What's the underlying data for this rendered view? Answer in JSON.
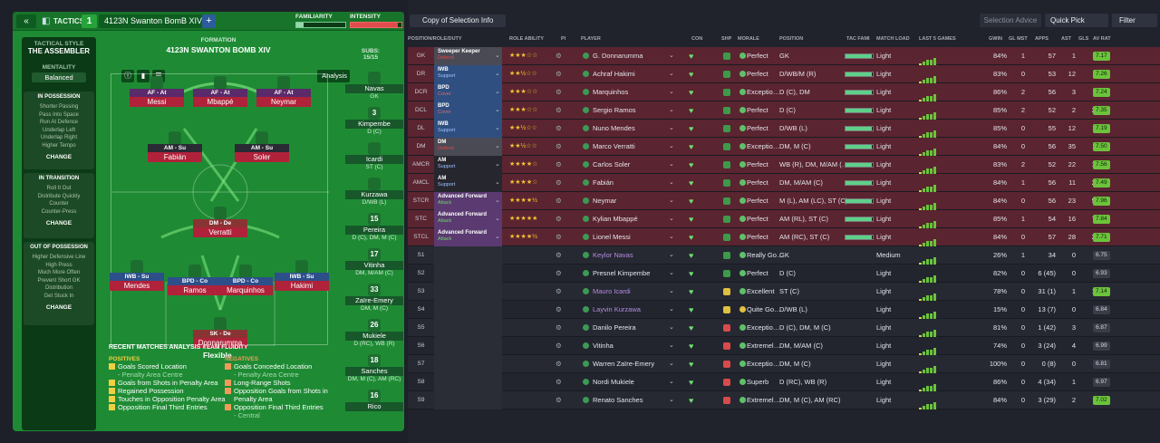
{
  "left": {
    "back_label": "«",
    "tactics_label": "TACTICS",
    "formation_number": "1",
    "formation_name": "4123N Swanton BomB  XIV",
    "plus_label": "+",
    "familiarity_label": "FAMILIARITY",
    "familiarity_value": 0.15,
    "intensity_label": "INTENSITY",
    "intensity_value": 0.92,
    "sidebar": {
      "tactical_style_label": "TACTICAL STYLE",
      "tactical_style_value": "THE ASSEMBLER",
      "mentality_label": "MENTALITY",
      "mentality_value": "Balanced",
      "in_possession": {
        "title": "IN POSSESSION",
        "items": [
          "Shorter Passing",
          "Pass Into Space",
          "Run At Defence",
          "Underlap Left",
          "Underlap Right",
          "Higher Tempo"
        ],
        "change": "CHANGE"
      },
      "in_transition": {
        "title": "IN TRANSITION",
        "items": [
          "Roll It Out",
          "Distribute Quickly",
          "Counter",
          "Counter-Press"
        ],
        "change": "CHANGE"
      },
      "out_of_possession": {
        "title": "OUT OF POSSESSION",
        "items": [
          "Higher Defensive Line",
          "High Press",
          "Much More Often",
          "Prevent Short GK",
          "Distribution",
          "Get Stuck In"
        ],
        "change": "CHANGE"
      }
    },
    "formation_label": "FORMATION",
    "formation_title": "4123N SWANTON BOMB  XIV",
    "analysis_label": "Analysis",
    "pitch_players": [
      {
        "role": "AF - At",
        "name": "Messi"
      },
      {
        "role": "AF - At",
        "name": "Mbappé"
      },
      {
        "role": "AF - At",
        "name": "Neymar"
      },
      {
        "role": "AM - Su",
        "name": "Fabián"
      },
      {
        "role": "AM - Su",
        "name": "Soler"
      },
      {
        "role": "DM - De",
        "name": "Verratti"
      },
      {
        "role": "IWB - Su",
        "name": "Mendes"
      },
      {
        "role": "BPD - Co",
        "name": "Ramos"
      },
      {
        "role": "BPD - Co",
        "name": "Marquinhos"
      },
      {
        "role": "IWB - Su",
        "name": "Hakimi"
      },
      {
        "role": "SK - De",
        "name": "Donnarumma"
      }
    ],
    "team_fluidity_label": "TEAM FLUIDITY",
    "team_fluidity_value": "Flexible",
    "subs_label": "SUBS:",
    "subs_count": "15/15",
    "subs": [
      {
        "num": "",
        "name": "Navas",
        "pos": "GK"
      },
      {
        "num": "3",
        "name": "Kimpembe",
        "pos": "D (C)"
      },
      {
        "num": "",
        "name": "Icardi",
        "pos": "ST (C)"
      },
      {
        "num": "",
        "name": "Kurzawa",
        "pos": "D/WB (L)"
      },
      {
        "num": "15",
        "name": "Pereira",
        "pos": "D (C), DM, M (C)"
      },
      {
        "num": "17",
        "name": "Vitinha",
        "pos": "DM, M/AM (C)"
      },
      {
        "num": "33",
        "name": "Zaïre-Emery",
        "pos": "DM, M (C)"
      },
      {
        "num": "26",
        "name": "Mukiele",
        "pos": "D (RC), WB (R)"
      },
      {
        "num": "18",
        "name": "Sanches",
        "pos": "DM, M (C), AM (RC)"
      },
      {
        "num": "16",
        "name": "Rico",
        "pos": ""
      }
    ],
    "recent": {
      "title": "RECENT MATCHES ANALYSIS ›",
      "positives_label": "POSITIVES",
      "negatives_label": "NEGATIVES",
      "positives": [
        "Goals Scored Location",
        "- Penalty Area Centre",
        "Goals from Shots in Penalty Area",
        "Regained Possession",
        "Touches in Opposition Penalty Area",
        "Opposition Final Third Entries"
      ],
      "negatives": [
        "Goals Conceded Location",
        "- Penalty Area Centre",
        "Long-Range Shots",
        "Opposition Goals from Shots in Penalty Area",
        "Opposition Final Third Entries",
        "- Central"
      ]
    }
  },
  "right": {
    "copy_label": "Copy of Selection Info",
    "selection_advice": "Selection Advice",
    "quick_pick": "Quick Pick",
    "filter": "Filter",
    "headers": [
      "POSITION/ROLE/DUTY",
      "ROLE ABILITY",
      "PI",
      "PLAYER",
      "CON",
      "SHP",
      "MORALE",
      "POSITION",
      "TAC FAMI",
      "MATCH LOAD",
      "LAST 5 GAMES",
      "GWIN",
      "GL MST",
      "APPS",
      "AST",
      "GLS",
      "AV RAT"
    ],
    "rows": [
      {
        "pos": "GK",
        "role": "Sweeper Keeper",
        "duty": "Defend",
        "stars": "★★★☆☆",
        "player": "G. Donnarumma",
        "morale": "Perfect",
        "position": "GK",
        "load": "Light",
        "tf": 0.95,
        "gwin": "84%",
        "glmst": "1",
        "apps": "57",
        "ast": "1",
        "gls": "0",
        "av": "7.17",
        "avc": "#6bc33b",
        "bg": "#5a2430",
        "duty_bg": "#4a4a55",
        "duty_color": "#d94b4b",
        "shp": "#3d9a4a",
        "mor_c": "#5fc06a"
      },
      {
        "pos": "DR",
        "role": "IWB",
        "duty": "Support",
        "stars": "★★½☆☆",
        "player": "Achraf Hakimi",
        "morale": "Perfect",
        "position": "D/WB/M (R)",
        "load": "Light",
        "tf": 0.95,
        "gwin": "83%",
        "glmst": "0",
        "apps": "53",
        "ast": "12",
        "gls": "4",
        "av": "7.26",
        "avc": "#6bc33b",
        "bg": "#5a2430",
        "duty_bg": "#2f4f80",
        "duty_color": "#9cc2ff",
        "shp": "#3d9a4a",
        "mor_c": "#5fc06a"
      },
      {
        "pos": "DCR",
        "role": "BPD",
        "duty": "Cover",
        "stars": "★★★☆☆",
        "player": "Marquinhos",
        "morale": "Exceptio…",
        "position": "D (C), DM",
        "load": "Light",
        "tf": 0.95,
        "gwin": "86%",
        "glmst": "2",
        "apps": "56",
        "ast": "3",
        "gls": "4",
        "av": "7.24",
        "avc": "#6bc33b",
        "bg": "#5a2430",
        "duty_bg": "#2f4f80",
        "duty_color": "#e06a6a",
        "shp": "#3d9a4a",
        "mor_c": "#5fc06a"
      },
      {
        "pos": "DCL",
        "role": "BPD",
        "duty": "Cover",
        "stars": "★★★☆☆",
        "player": "Sergio Ramos",
        "morale": "Perfect",
        "position": "D (C)",
        "load": "Light",
        "tf": 0.95,
        "gwin": "85%",
        "glmst": "2",
        "apps": "52",
        "ast": "2",
        "gls": "24",
        "av": "7.35",
        "avc": "#6bc33b",
        "bg": "#5a2430",
        "duty_bg": "#2f4f80",
        "duty_color": "#e06a6a",
        "shp": "#3d9a4a",
        "mor_c": "#5fc06a"
      },
      {
        "pos": "DL",
        "role": "IWB",
        "duty": "Support",
        "stars": "★★½☆☆",
        "player": "Nuno Mendes",
        "morale": "Perfect",
        "position": "D/WB (L)",
        "load": "Light",
        "tf": 0.95,
        "gwin": "85%",
        "glmst": "0",
        "apps": "55",
        "ast": "12",
        "gls": "1",
        "av": "7.19",
        "avc": "#6bc33b",
        "bg": "#5a2430",
        "duty_bg": "#2f4f80",
        "duty_color": "#9cc2ff",
        "shp": "#3d9a4a",
        "mor_c": "#5fc06a"
      },
      {
        "pos": "DM",
        "role": "DM",
        "duty": "Defend",
        "stars": "★★½☆☆",
        "player": "Marco Verratti",
        "morale": "Exceptio…",
        "position": "DM, M (C)",
        "load": "Light",
        "tf": 0.95,
        "gwin": "84%",
        "glmst": "0",
        "apps": "56",
        "ast": "35",
        "gls": "0",
        "av": "7.50",
        "avc": "#6bc33b",
        "bg": "#5a2430",
        "duty_bg": "#4a4a55",
        "duty_color": "#d94b4b",
        "shp": "#3d9a4a",
        "mor_c": "#5fc06a"
      },
      {
        "pos": "AMCR",
        "role": "AM",
        "duty": "Support",
        "stars": "★★★★☆",
        "player": "Carlos Soler",
        "morale": "Perfect",
        "position": "WB (R), DM, M/AM (…",
        "load": "Light",
        "tf": 0.95,
        "gwin": "83%",
        "glmst": "2",
        "apps": "52",
        "ast": "22",
        "gls": "18",
        "av": "7.56",
        "avc": "#6bc33b",
        "bg": "#5a2430",
        "duty_bg": "#26262e",
        "duty_color": "#9cc2ff",
        "shp": "#3d9a4a",
        "mor_c": "#5fc06a"
      },
      {
        "pos": "AMCL",
        "role": "AM",
        "duty": "Support",
        "stars": "★★★★☆",
        "player": "Fabián",
        "morale": "Perfect",
        "position": "DM, M/AM (C)",
        "load": "Light",
        "tf": 0.95,
        "gwin": "84%",
        "glmst": "1",
        "apps": "56",
        "ast": "11",
        "gls": "20",
        "av": "7.49",
        "avc": "#6bc33b",
        "bg": "#5a2430",
        "duty_bg": "#26262e",
        "duty_color": "#9cc2ff",
        "shp": "#3d9a4a",
        "mor_c": "#5fc06a"
      },
      {
        "pos": "STCR",
        "role": "Advanced Forward",
        "duty": "Attack",
        "stars": "★★★★½",
        "player": "Neymar",
        "morale": "Perfect",
        "position": "M (L), AM (LC), ST (C)",
        "load": "Light",
        "tf": 0.95,
        "gwin": "84%",
        "glmst": "0",
        "apps": "56",
        "ast": "23",
        "gls": "55",
        "av": "7.96",
        "avc": "#6bc33b",
        "bg": "#5a2430",
        "duty_bg": "#5a3a70",
        "duty_color": "#6fd46f",
        "shp": "#3d9a4a",
        "mor_c": "#5fc06a"
      },
      {
        "pos": "STC",
        "role": "Advanced Forward",
        "duty": "Attack",
        "stars": "★★★★★",
        "player": "Kylian Mbappé",
        "morale": "Perfect",
        "position": "AM (RL), ST (C)",
        "load": "Light",
        "tf": 0.95,
        "gwin": "85%",
        "glmst": "1",
        "apps": "54",
        "ast": "16",
        "gls": "71",
        "av": "7.84",
        "avc": "#6bc33b",
        "bg": "#5a2430",
        "duty_bg": "#5a3a70",
        "duty_color": "#6fd46f",
        "shp": "#3d9a4a",
        "mor_c": "#5fc06a"
      },
      {
        "pos": "STCL",
        "role": "Advanced Forward",
        "duty": "Attack",
        "stars": "★★★★½",
        "player": "Lionel Messi",
        "morale": "Perfect",
        "position": "AM (RC), ST (C)",
        "load": "Light",
        "tf": 0.95,
        "gwin": "84%",
        "glmst": "0",
        "apps": "57",
        "ast": "28",
        "gls": "26",
        "av": "7.71",
        "avc": "#6bc33b",
        "bg": "#5a2430",
        "duty_bg": "#5a3a70",
        "duty_color": "#6fd46f",
        "shp": "#3d9a4a",
        "mor_c": "#5fc06a"
      },
      {
        "pos": "S1",
        "role": "",
        "duty": "",
        "stars": "",
        "player": "Keylor Navas",
        "morale": "Really Go…",
        "position": "GK",
        "load": "Medium",
        "tf": 0,
        "gwin": "26%",
        "glmst": "1",
        "apps": "34",
        "ast": "0",
        "gls": "0",
        "av": "6.75",
        "avc": "#3a3d48",
        "bg": "#262932",
        "duty_bg": "#2a2d36",
        "duty_color": "#fff",
        "shp": "#3d9a4a",
        "mor_c": "#5fc06a",
        "pcolor": "#b58be0"
      },
      {
        "pos": "S2",
        "role": "",
        "duty": "",
        "stars": "",
        "player": "Presnel Kimpembe",
        "morale": "Perfect",
        "position": "D (C)",
        "load": "Light",
        "tf": 0,
        "gwin": "82%",
        "glmst": "0",
        "apps": "6 (45)",
        "ast": "0",
        "gls": "7",
        "av": "6.93",
        "avc": "#3a3d48",
        "bg": "#22252e",
        "duty_bg": "#2a2d36",
        "duty_color": "#fff",
        "shp": "#3d9a4a",
        "mor_c": "#5fc06a"
      },
      {
        "pos": "S3",
        "role": "",
        "duty": "",
        "stars": "",
        "player": "Mauro Icardi",
        "morale": "Excellent",
        "position": "ST (C)",
        "load": "Light",
        "tf": 0,
        "gwin": "78%",
        "glmst": "0",
        "apps": "31 (1)",
        "ast": "1",
        "gls": "17",
        "av": "7.14",
        "avc": "#6bc33b",
        "bg": "#262932",
        "duty_bg": "#2a2d36",
        "duty_color": "#fff",
        "shp": "#e0c040",
        "mor_c": "#5fc06a",
        "pcolor": "#b58be0"
      },
      {
        "pos": "S4",
        "role": "",
        "duty": "",
        "stars": "",
        "player": "Layvin Kurzawa",
        "morale": "Quite Go…",
        "position": "D/WB (L)",
        "load": "Light",
        "tf": 0,
        "gwin": "15%",
        "glmst": "0",
        "apps": "13 (7)",
        "ast": "0",
        "gls": "1",
        "av": "6.84",
        "avc": "#3a3d48",
        "bg": "#22252e",
        "duty_bg": "#2a2d36",
        "duty_color": "#fff",
        "shp": "#e0c040",
        "mor_c": "#e0c040",
        "pcolor": "#b58be0"
      },
      {
        "pos": "S5",
        "role": "",
        "duty": "",
        "stars": "",
        "player": "Danilo Pereira",
        "morale": "Exceptio…",
        "position": "D (C), DM, M (C)",
        "load": "Light",
        "tf": 0,
        "gwin": "81%",
        "glmst": "0",
        "apps": "1 (42)",
        "ast": "3",
        "gls": "0",
        "av": "6.87",
        "avc": "#3a3d48",
        "bg": "#262932",
        "duty_bg": "#2a2d36",
        "duty_color": "#fff",
        "shp": "#d94b4b",
        "mor_c": "#5fc06a"
      },
      {
        "pos": "S6",
        "role": "",
        "duty": "",
        "stars": "",
        "player": "Vitinha",
        "morale": "Extremel…",
        "position": "DM, M/AM (C)",
        "load": "Light",
        "tf": 0,
        "gwin": "74%",
        "glmst": "0",
        "apps": "3 (24)",
        "ast": "4",
        "gls": "0",
        "av": "6.99",
        "avc": "#3a3d48",
        "bg": "#22252e",
        "duty_bg": "#2a2d36",
        "duty_color": "#fff",
        "shp": "#d94b4b",
        "mor_c": "#5fc06a"
      },
      {
        "pos": "S7",
        "role": "",
        "duty": "",
        "stars": "",
        "player": "Warren Zaïre-Emery",
        "morale": "Exceptio…",
        "position": "DM, M (C)",
        "load": "Light",
        "tf": 0,
        "gwin": "100%",
        "glmst": "0",
        "apps": "0 (8)",
        "ast": "0",
        "gls": "0",
        "av": "6.81",
        "avc": "#3a3d48",
        "bg": "#262932",
        "duty_bg": "#2a2d36",
        "duty_color": "#fff",
        "shp": "#d94b4b",
        "mor_c": "#5fc06a"
      },
      {
        "pos": "S8",
        "role": "",
        "duty": "",
        "stars": "",
        "player": "Nordi Mukiele",
        "morale": "Superb",
        "position": "D (RC), WB (R)",
        "load": "Light",
        "tf": 0,
        "gwin": "86%",
        "glmst": "0",
        "apps": "4 (34)",
        "ast": "1",
        "gls": "0",
        "av": "6.97",
        "avc": "#3a3d48",
        "bg": "#22252e",
        "duty_bg": "#2a2d36",
        "duty_color": "#fff",
        "shp": "#d94b4b",
        "mor_c": "#5fc06a"
      },
      {
        "pos": "S9",
        "role": "",
        "duty": "",
        "stars": "",
        "player": "Renato Sanches",
        "morale": "Extremel…",
        "position": "DM, M (C), AM (RC)",
        "load": "Light",
        "tf": 0,
        "gwin": "84%",
        "glmst": "0",
        "apps": "3 (29)",
        "ast": "2",
        "gls": "2",
        "av": "7.02",
        "avc": "#6bc33b",
        "bg": "#262932",
        "duty_bg": "#2a2d36",
        "duty_color": "#fff",
        "shp": "#d94b4b",
        "mor_c": "#5fc06a"
      }
    ]
  }
}
